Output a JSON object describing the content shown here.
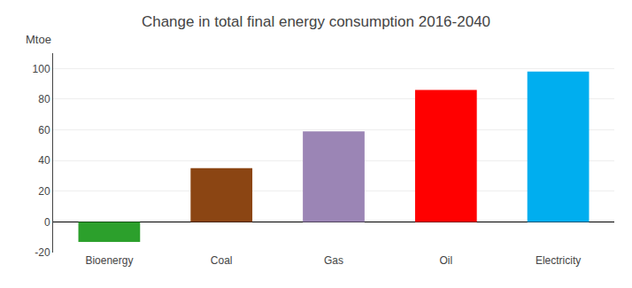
{
  "chart_data": {
    "type": "bar",
    "title": "Change in total final energy consumption 2016-2040",
    "annotations": [
      "Mtoe"
    ],
    "categories": [
      "Bioenergy",
      "Coal",
      "Gas",
      "Oil",
      "Electricity"
    ],
    "values": [
      -13,
      35,
      59,
      86,
      98
    ],
    "colors": [
      "#2CA02C",
      "#8B4513",
      "#9B85B5",
      "#FF0000",
      "#00AEEF"
    ],
    "ylim": [
      -20,
      110
    ],
    "yticks": [
      -20,
      0,
      20,
      40,
      60,
      80,
      100
    ],
    "grid": true
  }
}
